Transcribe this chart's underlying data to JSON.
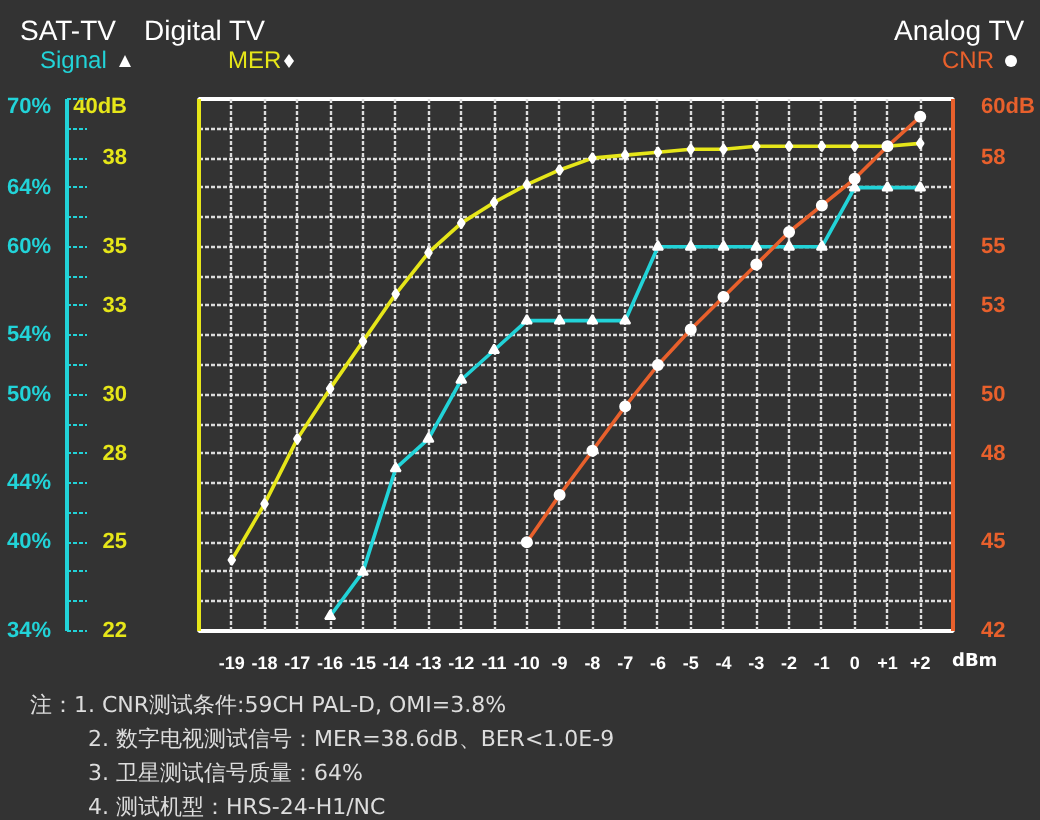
{
  "chart_data": {
    "type": "line",
    "ylabel": "Digital TV",
    "y2label": "Analog TV",
    "y3label": "SAT-TV",
    "x": [
      -19,
      -18,
      -17,
      -16,
      -15,
      -14,
      -13,
      -12,
      -11,
      -10,
      -9,
      -8,
      -7,
      -6,
      -5,
      -4,
      -3,
      -2,
      -1,
      0,
      1,
      2
    ],
    "xlim": [
      -20,
      3
    ],
    "xticks": [
      -19,
      -18,
      -17,
      -16,
      -15,
      -14,
      -13,
      -12,
      -11,
      -10,
      -9,
      -8,
      -7,
      -6,
      -5,
      -4,
      -3,
      -2,
      -1,
      0,
      {
        "value": 1,
        "label": "+1"
      },
      {
        "value": 2,
        "label": "+2"
      }
    ],
    "xlabel": "dBm",
    "ylim": [
      22,
      40
    ],
    "yticks": [
      22,
      {
        "value": 23,
        "label": null
      },
      {
        "value": 24,
        "label": null
      },
      25,
      {
        "value": 26,
        "label": null
      },
      {
        "value": 27,
        "label": null
      },
      28,
      {
        "value": 29,
        "label": null
      },
      30,
      {
        "value": 31,
        "label": null
      },
      {
        "value": 32,
        "label": null
      },
      33,
      {
        "value": 34,
        "label": null
      },
      35,
      {
        "value": 36,
        "label": null
      },
      {
        "value": 37,
        "label": null
      },
      38,
      {
        "value": 39,
        "label": null
      },
      {
        "value": 40,
        "label": "40dB"
      }
    ],
    "y2lim": [
      42,
      60
    ],
    "y2ticks": [
      42,
      45,
      48,
      50,
      53,
      55,
      58,
      {
        "value": 60,
        "label": "60dB"
      }
    ],
    "y3lim": [
      34,
      70
    ],
    "y3ticks": [
      {
        "value": 34,
        "label": "34%"
      },
      {
        "value": 36,
        "label": null
      },
      {
        "value": 38,
        "label": null
      },
      {
        "value": 40,
        "label": "40%"
      },
      {
        "value": 42,
        "label": null
      },
      {
        "value": 44,
        "label": "44%"
      },
      {
        "value": 46,
        "label": null
      },
      {
        "value": 48,
        "label": null
      },
      {
        "value": 50,
        "label": "50%"
      },
      {
        "value": 52,
        "label": null
      },
      {
        "value": 54,
        "label": "54%"
      },
      {
        "value": 56,
        "label": null
      },
      {
        "value": 58,
        "label": null
      },
      {
        "value": 60,
        "label": "60%"
      },
      {
        "value": 62,
        "label": null
      },
      {
        "value": 64,
        "label": "64%"
      },
      {
        "value": 66,
        "label": null
      },
      {
        "value": 68,
        "label": null
      },
      {
        "value": 70,
        "label": "70%"
      }
    ],
    "grid": true,
    "legend": "top",
    "series": [
      {
        "name": "MER",
        "color": "#e6e619",
        "marker": "diamond",
        "values": [
          24.4,
          26.3,
          28.5,
          30.2,
          31.8,
          33.4,
          34.8,
          35.8,
          36.5,
          37.1,
          37.6,
          38.0,
          38.1,
          38.2,
          38.3,
          38.3,
          38.4,
          38.4,
          38.4,
          38.4,
          38.4,
          38.5
        ]
      },
      {
        "name": "Signal",
        "color": "#22d3d8",
        "marker": "triangle",
        "axis": "y3",
        "values": [
          null,
          null,
          null,
          35,
          38,
          45,
          47,
          51,
          53,
          55,
          55,
          55,
          55,
          60,
          60,
          60,
          60,
          60,
          60,
          64,
          64,
          64
        ]
      },
      {
        "name": "CNR",
        "color": "#e8602c",
        "marker": "circle",
        "axis": "y2",
        "values": [
          null,
          null,
          null,
          null,
          null,
          null,
          null,
          null,
          null,
          45,
          46.6,
          48.1,
          49.6,
          51.0,
          52.2,
          53.3,
          54.4,
          55.5,
          56.4,
          57.3,
          58.4,
          59.4
        ]
      }
    ],
    "annotations": [
      "注：1. CNR测试条件:59CH  PAL-D, OMI=3.8%",
      "2. 数字电视测试信号：MER=38.6dB、BER<1.0E-9",
      "3. 卫星测试信号质量：64%",
      "4. 测试机型：HRS-24-H1/NC"
    ]
  }
}
